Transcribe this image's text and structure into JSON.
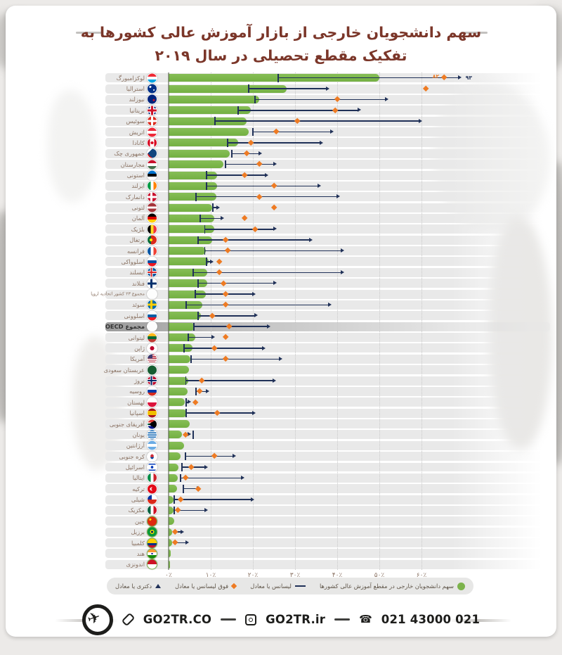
{
  "page": {
    "background": "#eceae8",
    "card_background": "#ffffff"
  },
  "header": {
    "title_line1": "سهم دانشجویان خارجی از بازار آموزش عالی کشورها به",
    "title_line2": "تفکیک مقطع تحصیلی در سال ۲۰۱۹",
    "title_color": "#7b3629"
  },
  "chart_data": {
    "type": "bar",
    "orientation": "horizontal",
    "title": "سهم دانشجویان خارجی از بازار آموزش عالی کشورها به تفکیک مقطع تحصیلی در سال ۲۰۱۹",
    "unit": "%",
    "xlim": [
      0,
      68
    ],
    "grid": true,
    "x_ticks": [
      {
        "label": "۰٪",
        "value": 0
      },
      {
        "label": "۱۰٪",
        "value": 10
      },
      {
        "label": "۲۰٪",
        "value": 20
      },
      {
        "label": "۳۰٪",
        "value": 30
      },
      {
        "label": "۴۰٪",
        "value": 40
      },
      {
        "label": "۵۰٪",
        "value": 50
      },
      {
        "label": "۶۰٪",
        "value": 60
      }
    ],
    "colors": {
      "total_bar": "#7cb34c",
      "bachelor_tick": "#203158",
      "master_diamond": "#ee7b23",
      "doctorate_arrow": "#203158"
    },
    "series_meaning": {
      "bar": "سهم دانشجویان خارجی در مقطع آموزش عالی کشورها",
      "bachelor": "لیسانس یا معادل",
      "master": "فوق لیسانس یا معادل",
      "doctorate": "دکتری یا معادل"
    },
    "countries": [
      {
        "name": "لوکزامبورگ",
        "flag": "linear-gradient(180deg,#ee2a35 0 4.5px,#ffffff 4.5px 8.5px,#00a3e0 8.5px)",
        "bar": 50,
        "bachelor": 26,
        "master": 82,
        "doctorate": 93,
        "master_x": 65.3,
        "doctorate_x": 69.3,
        "master_label": "۸۲",
        "doctorate_label": "۹۳"
      },
      {
        "name": "استرالیا",
        "flag": "radial-gradient(circle at 70% 65%, #fff 0 1px, transparent 1px), radial-gradient(circle at 30% 30%, #fff 0 1.5px, transparent 1.5px), #003087",
        "bar": 28,
        "bachelor": 19,
        "master": 61,
        "doctorate": 38
      },
      {
        "name": "نیوزلند",
        "flag": "radial-gradient(circle at 68% 60%, #cc142b 0 1.5px, transparent 1.5px), #00247d",
        "bar": 21.5,
        "bachelor": 20.5,
        "master": 40,
        "doctorate": 52
      },
      {
        "name": "بریتانیا",
        "flag": "linear-gradient(0deg, transparent 5px, #cf142b 5px 8px, transparent 8px), linear-gradient(90deg, transparent 5px, #cf142b 5px 8px, transparent 8px), linear-gradient(0deg, transparent 3.5px, #fff 3.5px 9.5px, transparent 9.5px), linear-gradient(90deg, transparent 3.5px, #fff 3.5px 9.5px, transparent 9.5px), #00247d",
        "bar": 19.5,
        "bachelor": 16.5,
        "master": 39.5,
        "doctorate": 45.5
      },
      {
        "name": "سوئیس",
        "flag": "linear-gradient(0deg, transparent 5px, #fff 5px 8px, transparent 8px), linear-gradient(90deg, transparent 5px, #fff 5px 8px, transparent 8px), #da291c",
        "bar": 18.5,
        "bachelor": 11,
        "master": 30.5,
        "doctorate": 60
      },
      {
        "name": "اتریش",
        "flag": "linear-gradient(180deg,#ed2939 0 4.5px,#fff 4.5px 8.5px,#ed2939 8.5px)",
        "bar": 19,
        "bachelor": 20,
        "master": 25.5,
        "doctorate": 39
      },
      {
        "name": "کانادا",
        "flag": "radial-gradient(circle at 50% 50%, #d80621 0 2px, transparent 2px), linear-gradient(90deg,#d80621 0 3.5px,#fff 3.5px 9.5px,#d80621 9.5px)",
        "bar": 16.5,
        "bachelor": 14,
        "master": 19.5,
        "doctorate": 36.5
      },
      {
        "name": "جمهوری چک",
        "flag": "conic-gradient(from 45deg at 0% 50%, #11457e 0 90deg, transparent 90deg), linear-gradient(180deg,#fff 0 6.5px,#d7141a 6.5px)",
        "bar": 14.5,
        "bachelor": 15,
        "master": 18.5,
        "doctorate": 22
      },
      {
        "name": "مجارستان",
        "flag": "linear-gradient(180deg,#c8102e 0 4.5px,#fff 4.5px 8.5px,#436f4d 8.5px)",
        "bar": 13,
        "bachelor": 13.5,
        "master": 21.5,
        "doctorate": 25.5
      },
      {
        "name": "استونی",
        "flag": "linear-gradient(180deg,#0072ce 0 4.5px,#000 4.5px 8.5px,#fff 8.5px)",
        "bar": 11.5,
        "bachelor": 9,
        "master": 18,
        "doctorate": 23.5
      },
      {
        "name": "ایرلند",
        "flag": "linear-gradient(90deg,#009a44 0 4.5px,#fff 4.5px 8.5px,#ff8200 8.5px)",
        "bar": 11.5,
        "bachelor": 9,
        "master": 25,
        "doctorate": 36
      },
      {
        "name": "دانمارک",
        "flag": "linear-gradient(0deg, transparent 5px, #fff 5px 8px, transparent 8px), linear-gradient(90deg, transparent 4px, #fff 4px 7px, transparent 7px), #c8102e",
        "bar": 11.3,
        "bachelor": 6.5,
        "master": 21.5,
        "doctorate": 40.5
      },
      {
        "name": "لتونی",
        "flag": "linear-gradient(180deg,#a4343a 0 5px,#fff 5px 8px,#a4343a 8px)",
        "bar": 10.3,
        "bachelor": 10.5,
        "master": 25,
        "doctorate": 12
      },
      {
        "name": "آلمان",
        "flag": "linear-gradient(180deg,#000 0 4.5px,#dd0000 4.5px 8.5px,#ffce00 8.5px)",
        "bar": 10.8,
        "bachelor": 7.5,
        "master": 18,
        "doctorate": 13
      },
      {
        "name": "بلژیک",
        "flag": "linear-gradient(90deg,#000 0 4.5px,#fdda24 4.5px 8.5px,#ef3340 8.5px)",
        "bar": 10.8,
        "bachelor": 8.6,
        "master": 20.5,
        "doctorate": 25.5
      },
      {
        "name": "پرتغال",
        "flag": "radial-gradient(circle at 38% 50%, #ffe900 0 2px, transparent 2px), linear-gradient(90deg,#046a38 0 5px,#da291c 5px)",
        "bar": 10.3,
        "bachelor": 7,
        "master": 13.5,
        "doctorate": 34
      },
      {
        "name": "فرانسه",
        "flag": "linear-gradient(90deg,#0055a4 0 4.5px,#fff 4.5px 8.5px,#ef4135 8.5px)",
        "bar": 8.8,
        "bachelor": 8.6,
        "master": 14,
        "doctorate": 41.5
      },
      {
        "name": "اسلوواکی",
        "flag": "linear-gradient(180deg,#fff 0 4.5px,#0b4ea2 4.5px 8.5px,#ee1620 8.5px)",
        "bar": 9.5,
        "bachelor": 9,
        "master": 12,
        "doctorate": 10.5
      },
      {
        "name": "ایسلند",
        "flag": "linear-gradient(0deg, transparent 5.5px, #d72828 5.5px 7.5px, transparent 7.5px), linear-gradient(90deg, transparent 4.5px, #d72828 4.5px 6.5px, transparent 6.5px), linear-gradient(0deg, transparent 4.5px, #fff 4.5px 8.5px, transparent 8.5px), linear-gradient(90deg, transparent 3.5px, #fff 3.5px 7.5px, transparent 7.5px), #02529c",
        "bar": 9.2,
        "bachelor": 5.8,
        "master": 12,
        "doctorate": 41.5
      },
      {
        "name": "فنلاند",
        "flag": "linear-gradient(0deg, transparent 5px, #002f6c 5px 8px, transparent 8px), linear-gradient(90deg, transparent 4px, #002f6c 4px 7px, transparent 7px), #fff",
        "bar": 9.2,
        "bachelor": 7,
        "master": 13,
        "doctorate": 25.5
      },
      {
        "name": "مجموع ۲۳ کشور اتحادیه اروپا",
        "flag": "#fdfdfd",
        "bar": 8.8,
        "bachelor": 6.3,
        "master": 13.5,
        "doctorate": 20.5
      },
      {
        "name": "سوئد",
        "flag": "linear-gradient(0deg, transparent 5px, #ffcd00 5px 8px, transparent 8px), linear-gradient(90deg, transparent 4px, #ffcd00 4px 7px, transparent 7px), #006aa7",
        "bar": 8,
        "bachelor": 4.2,
        "master": 13.5,
        "doctorate": 38.5
      },
      {
        "name": "اسلوونی",
        "flag": "linear-gradient(180deg,#fff 0 4.5px,#005da4 4.5px 8.5px,#ed1c24 8.5px)",
        "bar": 7.6,
        "bachelor": 7,
        "master": 10.3,
        "doctorate": 21
      },
      {
        "name": "مجموع OECD",
        "flag": "#fdfdfd",
        "bar": 6.2,
        "bachelor": 6,
        "master": 14.3,
        "doctorate": 24,
        "highlight": true
      },
      {
        "name": "لیتوانی",
        "flag": "linear-gradient(180deg,#ffb81c 0 4.5px,#046a38 4.5px 8.5px,#be3a34 8.5px)",
        "bar": 6.3,
        "bachelor": 4.7,
        "master": 13.5,
        "doctorate": 10.8
      },
      {
        "name": "ژاپن",
        "flag": "radial-gradient(circle at 50% 50%, #bc002d 0 3px, transparent 3px), #fff",
        "bar": 5.6,
        "bachelor": 3.7,
        "master": 10.8,
        "doctorate": 22.8
      },
      {
        "name": "آمریکا",
        "flag": "linear-gradient(#3c3b6e,#3c3b6e) 0 0/7px 6px no-repeat, repeating-linear-gradient(180deg,#b22234 0 1.3px,#fff 1.3px 2.6px)",
        "bar": 5.2,
        "bachelor": 5.3,
        "master": 13.5,
        "doctorate": 26.8
      },
      {
        "name": "عربستان سعودی",
        "flag": "#165d31",
        "bar": 4.9,
        "bachelor": null,
        "master": null,
        "doctorate": null
      },
      {
        "name": "نروژ",
        "flag": "linear-gradient(0deg, transparent 5.5px, #002868 5.5px 7.5px, transparent 7.5px), linear-gradient(90deg, transparent 4.5px, #002868 4.5px 6.5px, transparent 6.5px), linear-gradient(0deg, transparent 4.5px, #fff 4.5px 8.5px, transparent 8.5px), linear-gradient(90deg, transparent 3.5px, #fff 3.5px 7.5px, transparent 7.5px), #ba0c2f",
        "bar": 4.6,
        "bachelor": 4.1,
        "master": 7.8,
        "doctorate": 25.3
      },
      {
        "name": "روسیه",
        "flag": "linear-gradient(180deg,#fff 0 4.5px,#0039a6 4.5px 8.5px,#d52b1e 8.5px)",
        "bar": 4.5,
        "bachelor": 6.5,
        "master": 7.3,
        "doctorate": 9.5
      },
      {
        "name": "لهستان",
        "flag": "linear-gradient(180deg,#fff 0 6.5px,#dc143c 6.5px)",
        "bar": 3.8,
        "bachelor": 4.2,
        "master": 6.3,
        "doctorate": 5.2
      },
      {
        "name": "اسپانیا",
        "flag": "linear-gradient(180deg,#aa151b 0 3.5px,#f1bf00 3.5px 9.5px,#aa151b 9.5px)",
        "bar": 4.3,
        "bachelor": 4.2,
        "master": 11.5,
        "doctorate": 20.5
      },
      {
        "name": "آفریقای جنوبی",
        "flag": "conic-gradient(from 60deg at 10% 50%, #000 0 60deg, transparent 60deg), linear-gradient(180deg,#de3831 0 4px,#fff 4px 5.5px,#007a4d 5.5px 7.5px,#fff 7.5px 9px,#001489 9px)",
        "bar": 5,
        "bachelor": null,
        "master": null,
        "doctorate": null
      },
      {
        "name": "یونان",
        "flag": "repeating-linear-gradient(180deg,#005bae 0 1.5px,#fff 1.5px 3px)",
        "bar": 3.2,
        "bachelor": 5.8,
        "master": 4,
        "doctorate": 5.2
      },
      {
        "name": "آرژانتین",
        "flag": "linear-gradient(180deg,#6cace4 0 4.5px,#fff 4.5px 8.5px,#6cace4 8.5px)",
        "bar": 3.7,
        "bachelor": null,
        "master": null,
        "doctorate": null
      },
      {
        "name": "کره جنوبی",
        "flag": "radial-gradient(circle at 50% 42%, #cd2e3a 0 2.3px, transparent 2.3px), radial-gradient(circle at 50% 58%, #0047a0 0 2.3px, transparent 2.3px), #fff",
        "bar": 2.8,
        "bachelor": 4,
        "master": 10.8,
        "doctorate": 15.8
      },
      {
        "name": "اسرائیل",
        "flag": "radial-gradient(circle at 50% 50%, #0038b8 0 1.8px, transparent 1.8px), linear-gradient(180deg, transparent 1.5px, #0038b8 1.5px 3px, transparent 3px 10px, #0038b8 10px 11.5px, transparent 11.5px), #fff",
        "bar": 2.4,
        "bachelor": 3.2,
        "master": 5.3,
        "doctorate": 9.2
      },
      {
        "name": "ایتالیا",
        "flag": "linear-gradient(90deg,#008c45 0 4.5px,#fff 4.5px 8.5px,#cd212a 8.5px)",
        "bar": 2.2,
        "bachelor": 2.8,
        "master": 4,
        "doctorate": 17.8
      },
      {
        "name": "ترکیه",
        "flag": "radial-gradient(circle at 55% 50%, #e30a17 0 1.8px, transparent 1.8px), radial-gradient(circle at 45% 50%, #fff 0 2.3px, transparent 2.3px), #e30a17",
        "bar": 2,
        "bachelor": 3.5,
        "master": 7,
        "doctorate": 7.3
      },
      {
        "name": "شیلی",
        "flag": "linear-gradient(#0032a0,#0032a0) 0 0/6px 6.5px no-repeat, linear-gradient(180deg,#fff 0 6.5px,#da291c 6.5px)",
        "bar": 1.2,
        "bachelor": 1.3,
        "master": 2.8,
        "doctorate": 20.2
      },
      {
        "name": "مکزیک",
        "flag": "linear-gradient(90deg,#006341 0 4.5px,#fff 4.5px 8.5px,#ce1126 8.5px)",
        "bar": 1.1,
        "bachelor": 1.3,
        "master": 2.2,
        "doctorate": 9.2
      },
      {
        "name": "چین",
        "flag": "radial-gradient(circle at 30% 30%, #ffde00 0 1.5px, transparent 1.5px), #de2910",
        "bar": 1.3,
        "bachelor": null,
        "master": null,
        "doctorate": null,
        "ring": true
      },
      {
        "name": "برزیل",
        "flag": "radial-gradient(circle at 50% 50%, #012169 0 1.5px, transparent 1.5px), radial-gradient(circle at 50% 50%, #fedd00 0 3px, transparent 3px), #009739",
        "bar": 0.9,
        "bachelor": null,
        "master": 1.5,
        "doctorate": 3.5,
        "ring": true
      },
      {
        "name": "کلمبیا",
        "flag": "linear-gradient(180deg,#ffcd00 0 6.5px,#003087 6.5px 9.5px,#c8102e 9.5px)",
        "bar": 0.8,
        "bachelor": null,
        "master": 1.5,
        "doctorate": 4.7,
        "ring": true
      },
      {
        "name": "هند",
        "flag": "radial-gradient(circle at 50% 50%, #06038d 0 1.2px, transparent 1.2px), linear-gradient(180deg,#ff9933 0 4.5px,#fff 4.5px 8.5px,#138808 8.5px)",
        "bar": 0.5,
        "bachelor": null,
        "master": null,
        "doctorate": null,
        "ring": true
      },
      {
        "name": "اندونزی",
        "flag": "linear-gradient(180deg,#ce1126 0 6.5px,#fff 6.5px)",
        "bar": 0.4,
        "bachelor": null,
        "master": null,
        "doctorate": null,
        "ring": true
      }
    ]
  },
  "legend": {
    "items": [
      {
        "icon": "green-circle",
        "label": "سهم دانشجویان خارجی در مقطع آموزش عالی کشورها"
      },
      {
        "icon": "navy-line",
        "label": "لیسانس یا معادل"
      },
      {
        "icon": "orange-diamond",
        "label": "فوق لیسانس یا معادل"
      },
      {
        "icon": "navy-arrow",
        "label": "دکتری یا معادل"
      }
    ]
  },
  "footer": {
    "website": "GO2TR.CO",
    "instagram": "GO2TR.ir",
    "phone": "021 43000 021"
  }
}
